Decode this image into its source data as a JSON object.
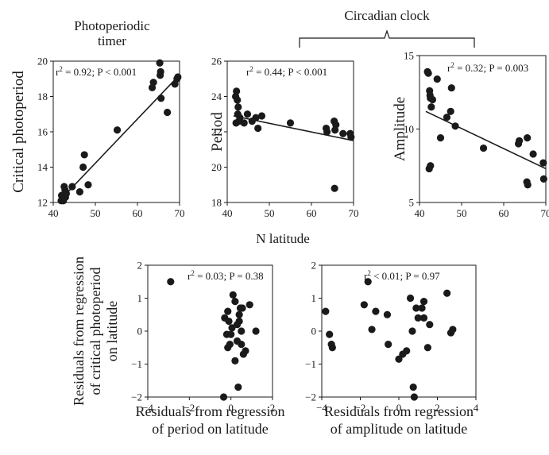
{
  "headers": {
    "timer_line1": "Photoperiodic",
    "timer_line2": "timer",
    "clock": "Circadian clock"
  },
  "shared_xlabel": "N latitude",
  "colors": {
    "ink": "#1a1a1a",
    "background": "#ffffff"
  },
  "chart_data": [
    {
      "type": "scatter",
      "id": "critical",
      "ylabel": "Critical photoperiod",
      "xlim": [
        40,
        70
      ],
      "ylim": [
        12,
        20
      ],
      "xticks": [
        "40",
        "50",
        "60",
        "70"
      ],
      "yticks": [
        "12",
        "14",
        "16",
        "18",
        "20"
      ],
      "stat_r2": "0.92",
      "stat_p": "P < 0.001",
      "regression_line": true,
      "fit": {
        "x": [
          41.5,
          69.5
        ],
        "y": [
          12.1,
          19.1
        ]
      },
      "points": {
        "x": [
          42.0,
          42.2,
          42.4,
          42.6,
          42.9,
          43.1,
          41.9,
          42.8,
          44.5,
          46.3,
          47.1,
          47.4,
          48.3,
          55.2,
          63.5,
          63.8,
          65.3,
          65.5,
          65.6,
          65.4,
          67.1,
          68.9,
          69.4,
          69.6
        ],
        "y": [
          12.4,
          12.2,
          12.1,
          12.9,
          12.3,
          12.5,
          12.1,
          12.7,
          12.9,
          12.6,
          14.0,
          14.7,
          13.0,
          16.1,
          18.5,
          18.8,
          19.9,
          19.4,
          17.9,
          19.2,
          17.1,
          18.7,
          19.0,
          19.1
        ]
      }
    },
    {
      "type": "scatter",
      "id": "period",
      "ylabel": "Period",
      "xlim": [
        40,
        70
      ],
      "ylim": [
        18,
        26
      ],
      "xticks": [
        "40",
        "50",
        "60",
        "70"
      ],
      "yticks": [
        "18",
        "20",
        "22",
        "24",
        "26"
      ],
      "stat_r2": "0.44",
      "stat_p": "P < 0.001",
      "regression_line": true,
      "fit": {
        "x": [
          41.5,
          70
        ],
        "y": [
          22.9,
          21.5
        ]
      },
      "points": {
        "x": [
          42.0,
          42.2,
          42.4,
          42.6,
          42.5,
          42.8,
          42.1,
          43.0,
          44.0,
          44.8,
          45.9,
          46.8,
          47.3,
          48.2,
          55.0,
          63.5,
          63.7,
          65.4,
          65.6,
          65.5,
          65.8,
          67.5,
          69.2,
          69.4
        ],
        "y": [
          24.0,
          24.3,
          23.8,
          23.4,
          23.0,
          22.6,
          22.5,
          22.8,
          22.5,
          23.0,
          22.6,
          22.8,
          22.2,
          22.9,
          22.5,
          22.2,
          22.0,
          22.6,
          22.1,
          18.8,
          22.4,
          21.9,
          21.9,
          21.7
        ]
      }
    },
    {
      "type": "scatter",
      "id": "amplitude",
      "ylabel": "Amplitude",
      "xlim": [
        40,
        70
      ],
      "ylim": [
        5,
        15
      ],
      "xticks": [
        "40",
        "50",
        "60",
        "70"
      ],
      "yticks": [
        "5",
        "10",
        "15"
      ],
      "stat_r2": "0.32",
      "stat_p": "P = 0.003",
      "regression_line": true,
      "fit": {
        "x": [
          41.5,
          70
        ],
        "y": [
          11.2,
          7.3
        ]
      },
      "points": {
        "x": [
          41.9,
          42.1,
          42.4,
          42.5,
          42.6,
          42.8,
          43.1,
          42.3,
          42.6,
          44.2,
          45.0,
          46.5,
          47.4,
          47.6,
          48.5,
          55.2,
          63.5,
          63.7,
          65.6,
          65.7,
          65.5,
          67.0,
          69.4,
          69.5
        ],
        "y": [
          13.9,
          13.8,
          12.6,
          12.3,
          12.1,
          11.5,
          12.0,
          7.3,
          7.5,
          13.4,
          9.4,
          10.8,
          11.2,
          12.8,
          10.2,
          8.7,
          9.0,
          9.2,
          9.4,
          6.2,
          6.4,
          8.3,
          7.7,
          6.6
        ]
      }
    },
    {
      "type": "scatter",
      "id": "resid-period",
      "ylabel_lines": [
        "Residuals from regression",
        "of critical photoperiod",
        "on latitude"
      ],
      "xlabel_lines": [
        "Residuals from regression",
        "of period on latitude"
      ],
      "xlim": [
        -4,
        2
      ],
      "ylim": [
        -2,
        2
      ],
      "xticks": [
        "−4",
        "−2",
        "0",
        "2"
      ],
      "yticks": [
        "−2",
        "−1",
        "0",
        "1",
        "2"
      ],
      "stat_r2": "0.03",
      "stat_p": "P = 0.38",
      "regression_line": false,
      "points": {
        "x": [
          -2.9,
          -0.35,
          0.35,
          0.55,
          0.1,
          0.45,
          0.9,
          0.4,
          0.2,
          0.5,
          -0.3,
          -0.15,
          -0.1,
          0.0,
          0.05,
          0.3,
          1.2,
          0.7,
          -0.05,
          -0.15,
          -0.2,
          0.3,
          0.5,
          0.6,
          0.2,
          0.4
        ],
        "y": [
          1.5,
          -2.0,
          -1.7,
          0.7,
          1.1,
          0.7,
          0.8,
          0.5,
          0.9,
          0.0,
          0.4,
          0.6,
          0.3,
          -0.1,
          0.1,
          0.2,
          0.0,
          -0.6,
          -0.4,
          -0.5,
          -0.1,
          -0.3,
          -0.4,
          -0.7,
          -0.9,
          0.3
        ]
      }
    },
    {
      "type": "scatter",
      "id": "resid-amplitude",
      "ylabel_lines": [],
      "xlabel_lines": [
        "Residuals from regression",
        "of amplitude on latitude"
      ],
      "xlim": [
        -4,
        4
      ],
      "ylim": [
        -2,
        2
      ],
      "xticks": [
        "−4",
        "−2",
        "0",
        "2",
        "4"
      ],
      "yticks": [
        "−2",
        "−1",
        "0",
        "1",
        "2"
      ],
      "stat_r2": "< 0.01",
      "stat_p": "P = 0.97",
      "regression_line": false,
      "points": {
        "x": [
          -3.8,
          -3.6,
          -3.5,
          -3.45,
          -1.8,
          -1.6,
          -1.4,
          -1.2,
          -0.6,
          -0.55,
          0.0,
          0.2,
          0.4,
          0.7,
          0.75,
          0.8,
          0.9,
          1.0,
          1.2,
          1.3,
          1.5,
          1.6,
          2.5,
          2.7,
          2.8,
          1.3,
          0.6
        ],
        "y": [
          0.6,
          -0.1,
          -0.4,
          -0.5,
          0.8,
          1.5,
          0.05,
          0.6,
          0.5,
          -0.4,
          -0.85,
          -0.7,
          -0.6,
          0.0,
          -1.7,
          -2.0,
          0.7,
          0.4,
          0.7,
          0.4,
          -0.5,
          0.2,
          1.15,
          -0.05,
          0.05,
          0.9,
          1.0
        ]
      }
    }
  ]
}
